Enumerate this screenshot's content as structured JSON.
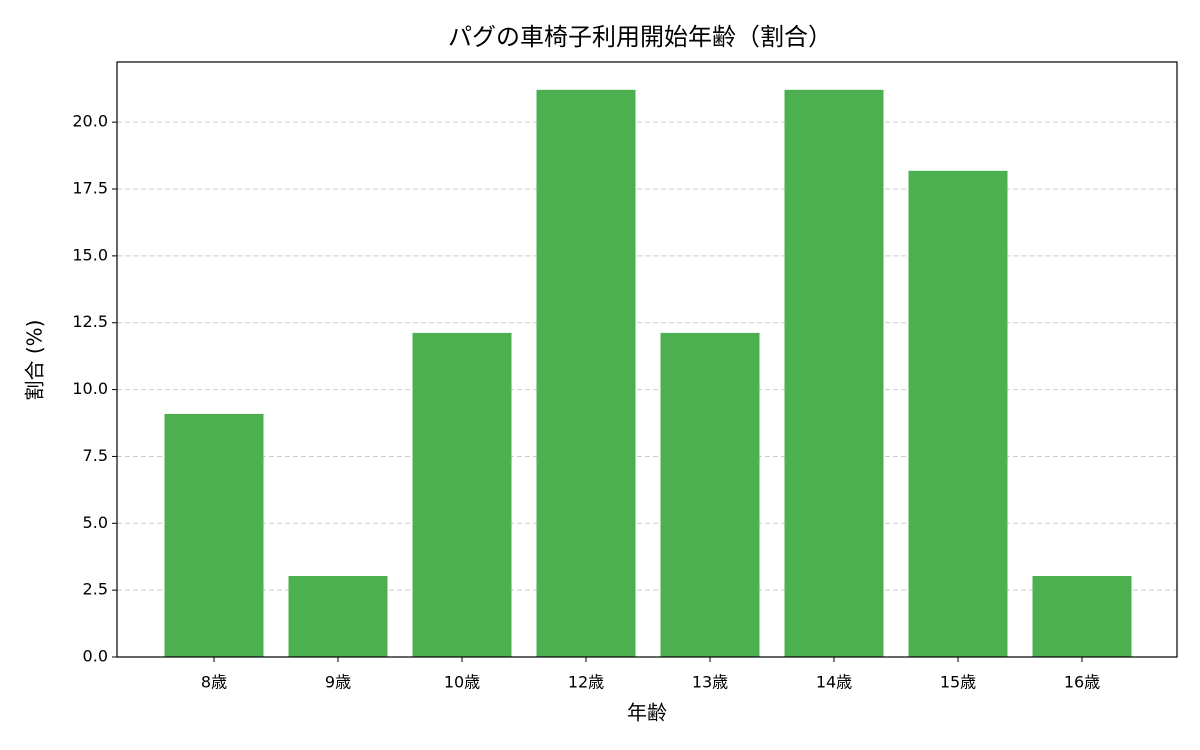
{
  "chart_data": {
    "type": "bar",
    "title": "パグの車椅子利用開始年齢（割合）",
    "x_label": "年齢",
    "y_label": "割合 (%)",
    "categories": [
      "8歳",
      "9歳",
      "10歳",
      "12歳",
      "13歳",
      "14歳",
      "15歳",
      "16歳"
    ],
    "values": [
      9.09,
      3.03,
      12.12,
      21.21,
      12.12,
      21.21,
      18.18,
      3.03
    ],
    "color": "#4caf50",
    "ylim": [
      0,
      22.25
    ],
    "yticks": [
      {
        "value": 0,
        "label": "0.0"
      },
      {
        "value": 2.5,
        "label": "2.5"
      },
      {
        "value": 5,
        "label": "5.0"
      },
      {
        "value": 7.5,
        "label": "7.5"
      },
      {
        "value": 10,
        "label": "10.0"
      },
      {
        "value": 12.5,
        "label": "12.5"
      },
      {
        "value": 15,
        "label": "15.0"
      },
      {
        "value": 17.5,
        "label": "17.5"
      },
      {
        "value": 20,
        "label": "20.0"
      }
    ],
    "grid": true
  }
}
